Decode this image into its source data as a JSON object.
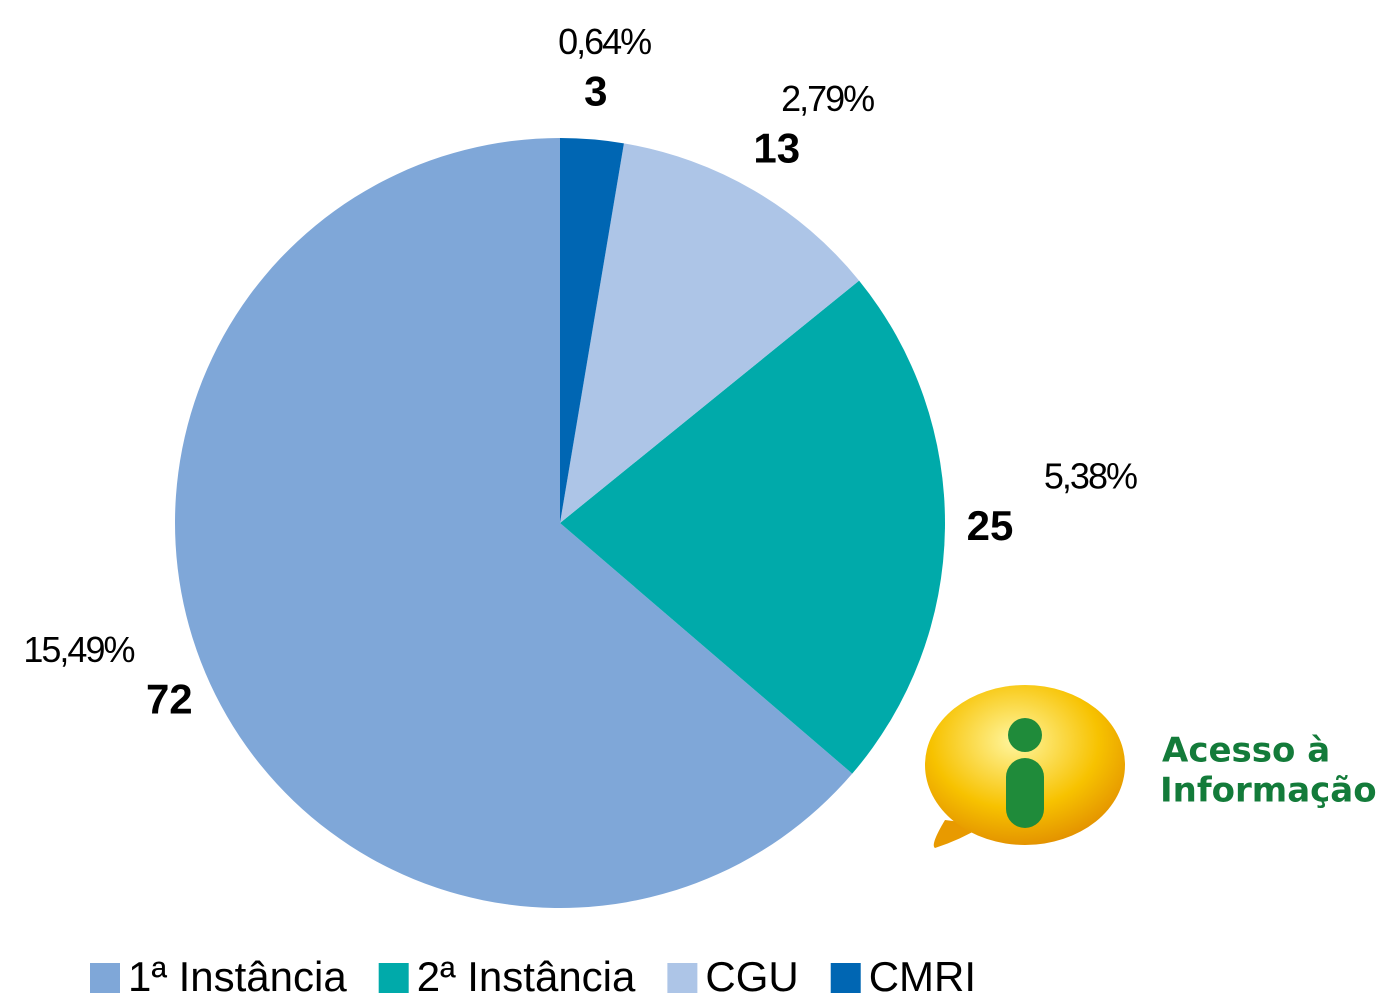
{
  "chart_data": {
    "type": "pie",
    "direction": "counterclockwise",
    "categories": [
      "1ª Instância",
      "2ª Instância",
      "CGU",
      "CMRI"
    ],
    "values": [
      72,
      25,
      13,
      3
    ],
    "percent_labels": [
      "15,49%",
      "5,38%",
      "2,79%",
      "0,64%"
    ],
    "colors": [
      "#7fa7d8",
      "#00aaaa",
      "#adc5e7",
      "#0066b3"
    ],
    "legend": "bottom"
  },
  "logo": {
    "line1": "Acesso à",
    "line2": "Informação"
  }
}
